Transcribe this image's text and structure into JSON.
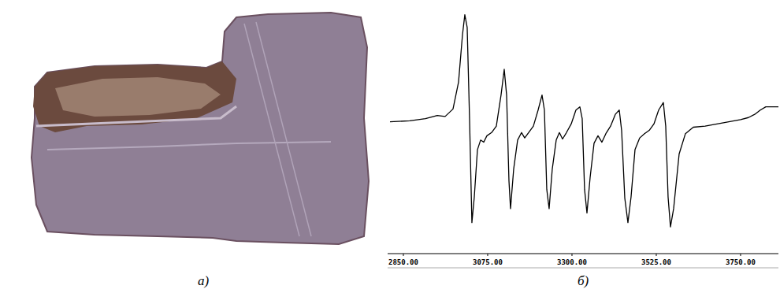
{
  "figure": {
    "labels": [
      "а)",
      "б)"
    ]
  },
  "chart_data": {
    "type": "line",
    "color": "#000000",
    "grid": false,
    "tick_labels": "x",
    "xlim": [
      2808,
      3851
    ],
    "ylim": [
      -1.2,
      1.1
    ],
    "xticks": [
      {
        "value": 2850,
        "label": "2850.00"
      },
      {
        "value": 3075,
        "label": "3075.00"
      },
      {
        "value": 3300,
        "label": "3300.00"
      },
      {
        "value": 3525,
        "label": "3525.00"
      },
      {
        "value": 3750,
        "label": "3750.00"
      }
    ],
    "x": [
      2814.3,
      2866.8,
      2908.9,
      2940.4,
      2961.4,
      2982.5,
      2997.2,
      3007.7,
      3014.0,
      3020.3,
      3026.6,
      3032.9,
      3039.3,
      3047.7,
      3056.1,
      3064.5,
      3072.9,
      3085.5,
      3098.1,
      3110.7,
      3119.2,
      3125.5,
      3131.8,
      3136.0,
      3144.4,
      3154.9,
      3165.4,
      3173.8,
      3184.3,
      3197.0,
      3209.6,
      3220.1,
      3226.4,
      3232.7,
      3239.0,
      3247.4,
      3257.9,
      3266.4,
      3274.8,
      3285.3,
      3297.9,
      3310.5,
      3321.0,
      3327.3,
      3333.6,
      3340.0,
      3348.4,
      3358.9,
      3369.4,
      3379.9,
      3390.4,
      3403.0,
      3415.7,
      3426.2,
      3432.5,
      3440.9,
      3449.3,
      3457.7,
      3468.2,
      3480.8,
      3493.5,
      3506.1,
      3518.7,
      3531.3,
      3543.9,
      3550.2,
      3556.5,
      3562.8,
      3571.3,
      3586.0,
      3602.8,
      3623.8,
      3655.4,
      3686.9,
      3718.5,
      3750.0,
      3771.0,
      3787.8,
      3802.6,
      3817.3,
      3834.1,
      3851.0
    ],
    "values": [
      0.0,
      0.01,
      0.03,
      0.06,
      0.05,
      0.12,
      0.37,
      0.81,
      1.0,
      0.88,
      0.03,
      -0.94,
      -0.7,
      -0.26,
      -0.17,
      -0.19,
      -0.13,
      -0.1,
      -0.04,
      0.25,
      0.49,
      0.25,
      -0.55,
      -0.81,
      -0.44,
      -0.17,
      -0.1,
      -0.15,
      -0.1,
      -0.04,
      0.11,
      0.25,
      0.11,
      -0.63,
      -0.81,
      -0.44,
      -0.17,
      -0.1,
      -0.16,
      -0.1,
      -0.02,
      0.11,
      0.14,
      0.03,
      -0.63,
      -0.85,
      -0.52,
      -0.2,
      -0.13,
      -0.19,
      -0.11,
      -0.04,
      0.07,
      0.11,
      -0.08,
      -0.71,
      -0.94,
      -0.7,
      -0.26,
      -0.15,
      -0.11,
      -0.08,
      -0.02,
      0.11,
      0.18,
      -0.04,
      -0.7,
      -0.98,
      -0.81,
      -0.3,
      -0.11,
      -0.05,
      -0.04,
      -0.02,
      0.0,
      0.02,
      0.04,
      0.07,
      0.11,
      0.14,
      0.14,
      0.14
    ]
  }
}
